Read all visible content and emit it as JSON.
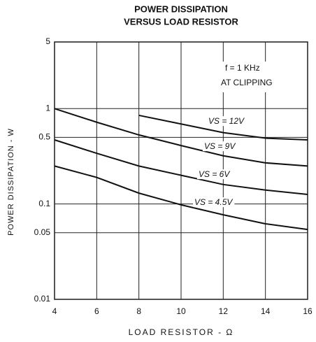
{
  "chart_data": {
    "type": "line",
    "title": [
      "POWER DISSIPATION",
      "VERSUS LOAD RESISTOR"
    ],
    "x_label": "LOAD RESISTOR - Ω",
    "y_label": "POWER DISSIPATION - W",
    "annotations": [
      "f = 1 KHz",
      "AT CLIPPING"
    ],
    "x": [
      4,
      6,
      8,
      10,
      12,
      14,
      16
    ],
    "series": [
      {
        "name": "VS = 12V",
        "color": "#111111",
        "values": [
          null,
          null,
          0.85,
          0.69,
          0.56,
          0.49,
          0.47
        ]
      },
      {
        "name": "VS = 9V",
        "color": "#111111",
        "values": [
          1.0,
          0.72,
          0.53,
          0.41,
          0.32,
          0.27,
          0.25
        ]
      },
      {
        "name": "VS = 6V",
        "color": "#111111",
        "values": [
          0.47,
          0.34,
          0.25,
          0.2,
          0.16,
          0.14,
          0.126
        ]
      },
      {
        "name": "VS = 4.5V",
        "color": "#111111",
        "values": [
          0.25,
          0.19,
          0.13,
          0.098,
          0.077,
          0.062,
          0.054
        ]
      }
    ],
    "xlim": [
      4,
      16
    ],
    "xticks": [
      4,
      6,
      8,
      10,
      12,
      14,
      16
    ],
    "ylim": [
      0.01,
      5
    ],
    "yticks": [
      0.01,
      0.05,
      0.1,
      0.5,
      1,
      5
    ],
    "y_log": true,
    "grid": true
  }
}
